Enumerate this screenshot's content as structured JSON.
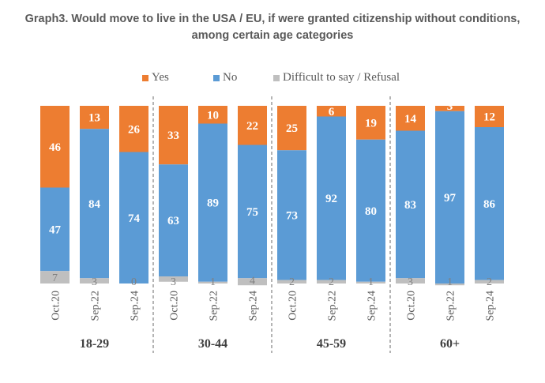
{
  "chart_data": {
    "type": "bar",
    "stacked": true,
    "percent_stacked": true,
    "title": "Graph3. Would move to live in the USA / EU, if were granted citizenship without conditions, among certain age categories",
    "title_lines": [
      "Graph3. Would move to live in the USA / EU, if were granted citizenship without conditions,",
      "among certain age categories"
    ],
    "xlabel": "",
    "ylabel": "",
    "ylim": [
      0,
      100
    ],
    "grid": false,
    "legend_position": "top",
    "groups": [
      {
        "label": "18-29",
        "categories": [
          "Oct.20",
          "Sep.22",
          "Sep.24"
        ]
      },
      {
        "label": "30-44",
        "categories": [
          "Oct.20",
          "Sep.22",
          "Sep.24"
        ]
      },
      {
        "label": "45-59",
        "categories": [
          "Oct.20",
          "Sep.22",
          "Sep.24"
        ]
      },
      {
        "label": "60+",
        "categories": [
          "Oct.20",
          "Sep.22",
          "Sep.24"
        ]
      }
    ],
    "categories": [
      "Oct.20",
      "Sep.22",
      "Sep.24",
      "Oct.20",
      "Sep.22",
      "Sep.24",
      "Oct.20",
      "Sep.22",
      "Sep.24",
      "Oct.20",
      "Sep.22",
      "Sep.24"
    ],
    "series": [
      {
        "name": "Yes",
        "color": "#ED7D31",
        "values": [
          46,
          13,
          26,
          33,
          10,
          22,
          25,
          6,
          19,
          14,
          3,
          12
        ]
      },
      {
        "name": "No",
        "color": "#5B9BD5",
        "values": [
          47,
          84,
          74,
          63,
          89,
          75,
          73,
          92,
          80,
          83,
          97,
          86
        ]
      },
      {
        "name": "Difficult to say / Refusal",
        "color": "#BFBFBF",
        "values": [
          7,
          3,
          0,
          3,
          1,
          4,
          2,
          2,
          1,
          3,
          1,
          2
        ]
      }
    ]
  },
  "legend": {
    "items": [
      {
        "label": "Yes",
        "color": "#ED7D31"
      },
      {
        "label": "No",
        "color": "#5B9BD5"
      },
      {
        "label": "Difficult to say / Refusal",
        "color": "#BFBFBF"
      }
    ]
  }
}
